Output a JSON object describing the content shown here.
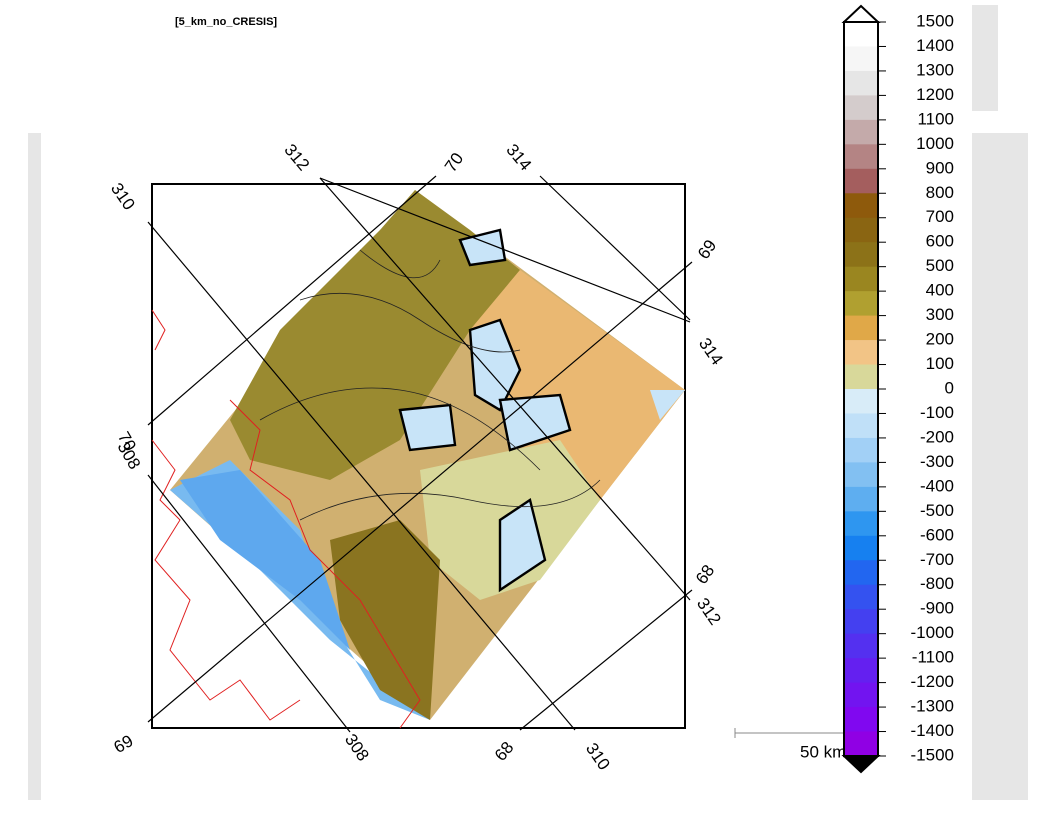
{
  "header": {
    "title": "[5_km_no_CRESIS]"
  },
  "map": {
    "graticule_labels": [
      "310",
      "312",
      "70",
      "314",
      "69",
      "314",
      "70",
      "308",
      "68",
      "312",
      "69",
      "308",
      "68",
      "310"
    ],
    "scale_bar": "50 km"
  },
  "colorbar": {
    "levels": [
      1500,
      1400,
      1300,
      1200,
      1100,
      1000,
      900,
      800,
      700,
      600,
      500,
      400,
      300,
      200,
      100,
      0,
      -100,
      -200,
      -300,
      -400,
      -500,
      -600,
      -700,
      -800,
      -900,
      -1000,
      -1100,
      -1200,
      -1300,
      -1400,
      -1500
    ],
    "colors": [
      "#ffffff",
      "#f6f6f6",
      "#e6e6e6",
      "#d4cccc",
      "#c4aaaa",
      "#b48484",
      "#a45e5e",
      "#8e5a0c",
      "#8a6512",
      "#8c7218",
      "#9a8620",
      "#b0a030",
      "#e0a848",
      "#f2c486",
      "#d8d89a",
      "#d8ecf8",
      "#c0e0f8",
      "#a2d0f6",
      "#82c0f2",
      "#5eaef0",
      "#2e96f0",
      "#1680f0",
      "#2266f0",
      "#3452f0",
      "#4440f0",
      "#5430f0",
      "#6420f0",
      "#7214f0",
      "#8008f0",
      "#9000e4"
    ]
  }
}
